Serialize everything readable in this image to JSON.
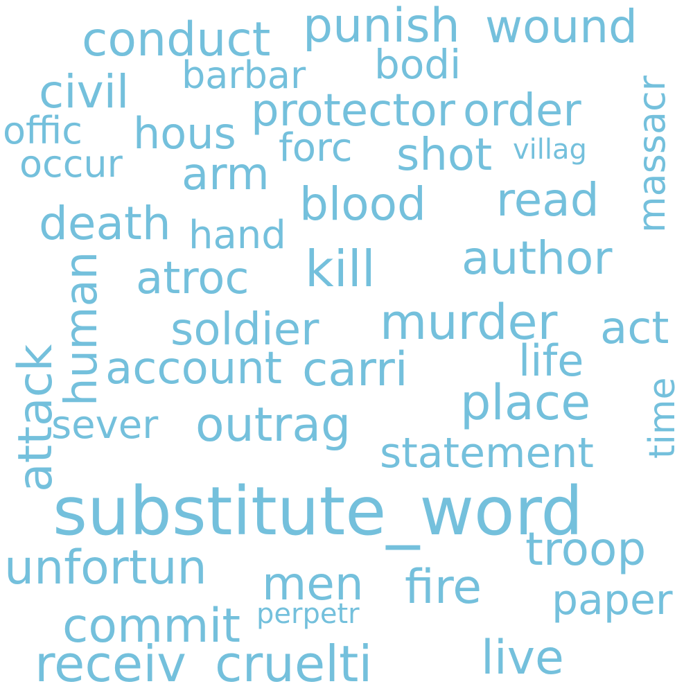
{
  "cloud": {
    "color": "#74c0dc",
    "words": [
      "substitute_word",
      "punish",
      "wound",
      "conduct",
      "barbar",
      "bodi",
      "massacr",
      "civil",
      "protector",
      "order",
      "offic",
      "hous",
      "forc",
      "shot",
      "villag",
      "occur",
      "arm",
      "blood",
      "read",
      "death",
      "hand",
      "kill",
      "author",
      "atroc",
      "human",
      "attack",
      "soldier",
      "murder",
      "act",
      "account",
      "carri",
      "life",
      "time",
      "place",
      "sever",
      "outrag",
      "statement",
      "troop",
      "unfortun",
      "men",
      "fire",
      "paper",
      "commit",
      "perpetr",
      "receiv",
      "cruelti",
      "live"
    ]
  }
}
